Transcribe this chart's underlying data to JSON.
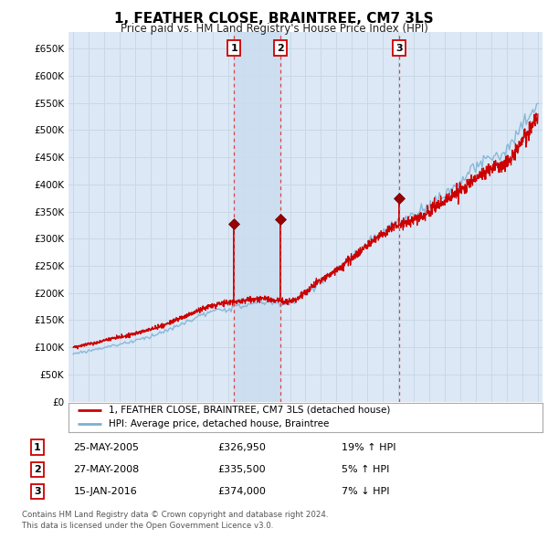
{
  "title": "1, FEATHER CLOSE, BRAINTREE, CM7 3LS",
  "subtitle": "Price paid vs. HM Land Registry's House Price Index (HPI)",
  "hpi_label": "HPI: Average price, detached house, Braintree",
  "price_label": "1, FEATHER CLOSE, BRAINTREE, CM7 3LS (detached house)",
  "transactions": [
    {
      "num": 1,
      "date": "25-MAY-2005",
      "price": 326950,
      "pct": "19%",
      "dir": "↑"
    },
    {
      "num": 2,
      "date": "27-MAY-2008",
      "price": 335500,
      "pct": "5%",
      "dir": "↑"
    },
    {
      "num": 3,
      "date": "15-JAN-2016",
      "price": 374000,
      "pct": "7%",
      "dir": "↓"
    }
  ],
  "transaction_years": [
    2005.38,
    2008.38,
    2016.04
  ],
  "ylim": [
    0,
    680000
  ],
  "yticks": [
    0,
    50000,
    100000,
    150000,
    200000,
    250000,
    300000,
    350000,
    400000,
    450000,
    500000,
    550000,
    600000,
    650000
  ],
  "xlim_start": 1994.7,
  "xlim_end": 2025.3,
  "price_color": "#cc0000",
  "hpi_color": "#7ab0d4",
  "vline_color": "#dd4444",
  "grid_color": "#c8d8e8",
  "background_color": "#dce8f5",
  "highlight_color": "#ccddf0",
  "copyright": "Contains HM Land Registry data © Crown copyright and database right 2024.",
  "licence": "This data is licensed under the Open Government Licence v3.0."
}
